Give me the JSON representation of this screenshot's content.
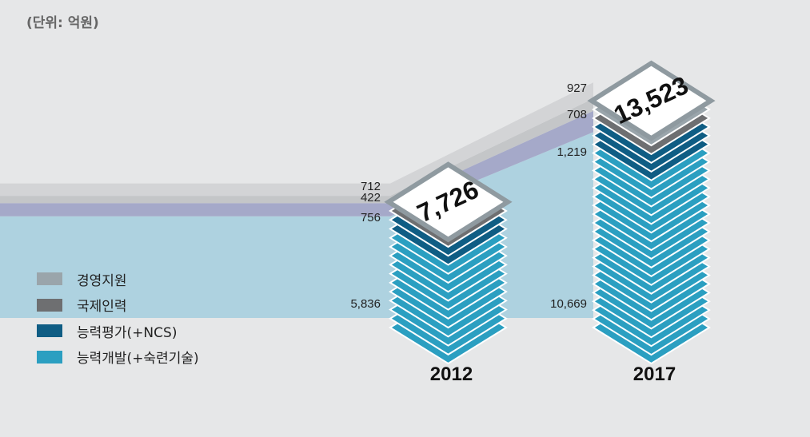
{
  "unit_label": "(단위: 억원)",
  "colors": {
    "management": "#9aa5ab",
    "international": "#6e6f71",
    "evaluation": "#0f5d84",
    "development": "#2b9fc1",
    "background": "#e6e7e8"
  },
  "chart_data": {
    "type": "bar",
    "stacked": true,
    "categories": [
      "2012",
      "2017"
    ],
    "totals": [
      7726,
      13523
    ],
    "total_labels": [
      "7,726",
      "13,523"
    ],
    "series": [
      {
        "name": "능력개발(+숙련기술)",
        "values": [
          5836,
          10669
        ],
        "labels": [
          "5,836",
          "10,669"
        ]
      },
      {
        "name": "능력평가(+NCS)",
        "values": [
          756,
          1219
        ],
        "labels": [
          "756",
          "1,219"
        ]
      },
      {
        "name": "국제인력",
        "values": [
          422,
          708
        ],
        "labels": [
          "422",
          "708"
        ]
      },
      {
        "name": "경영지원",
        "values": [
          712,
          927
        ],
        "labels": [
          "712",
          "927"
        ]
      }
    ],
    "legend_position": "bottom-left"
  },
  "legend": [
    {
      "label": "경영지원",
      "color": "#9aa5ab"
    },
    {
      "label": "국제인력",
      "color": "#6e6f71"
    },
    {
      "label": "능력평가(+NCS)",
      "color": "#0f5d84"
    },
    {
      "label": "능력개발(+숙련기술)",
      "color": "#2b9fc1"
    }
  ]
}
